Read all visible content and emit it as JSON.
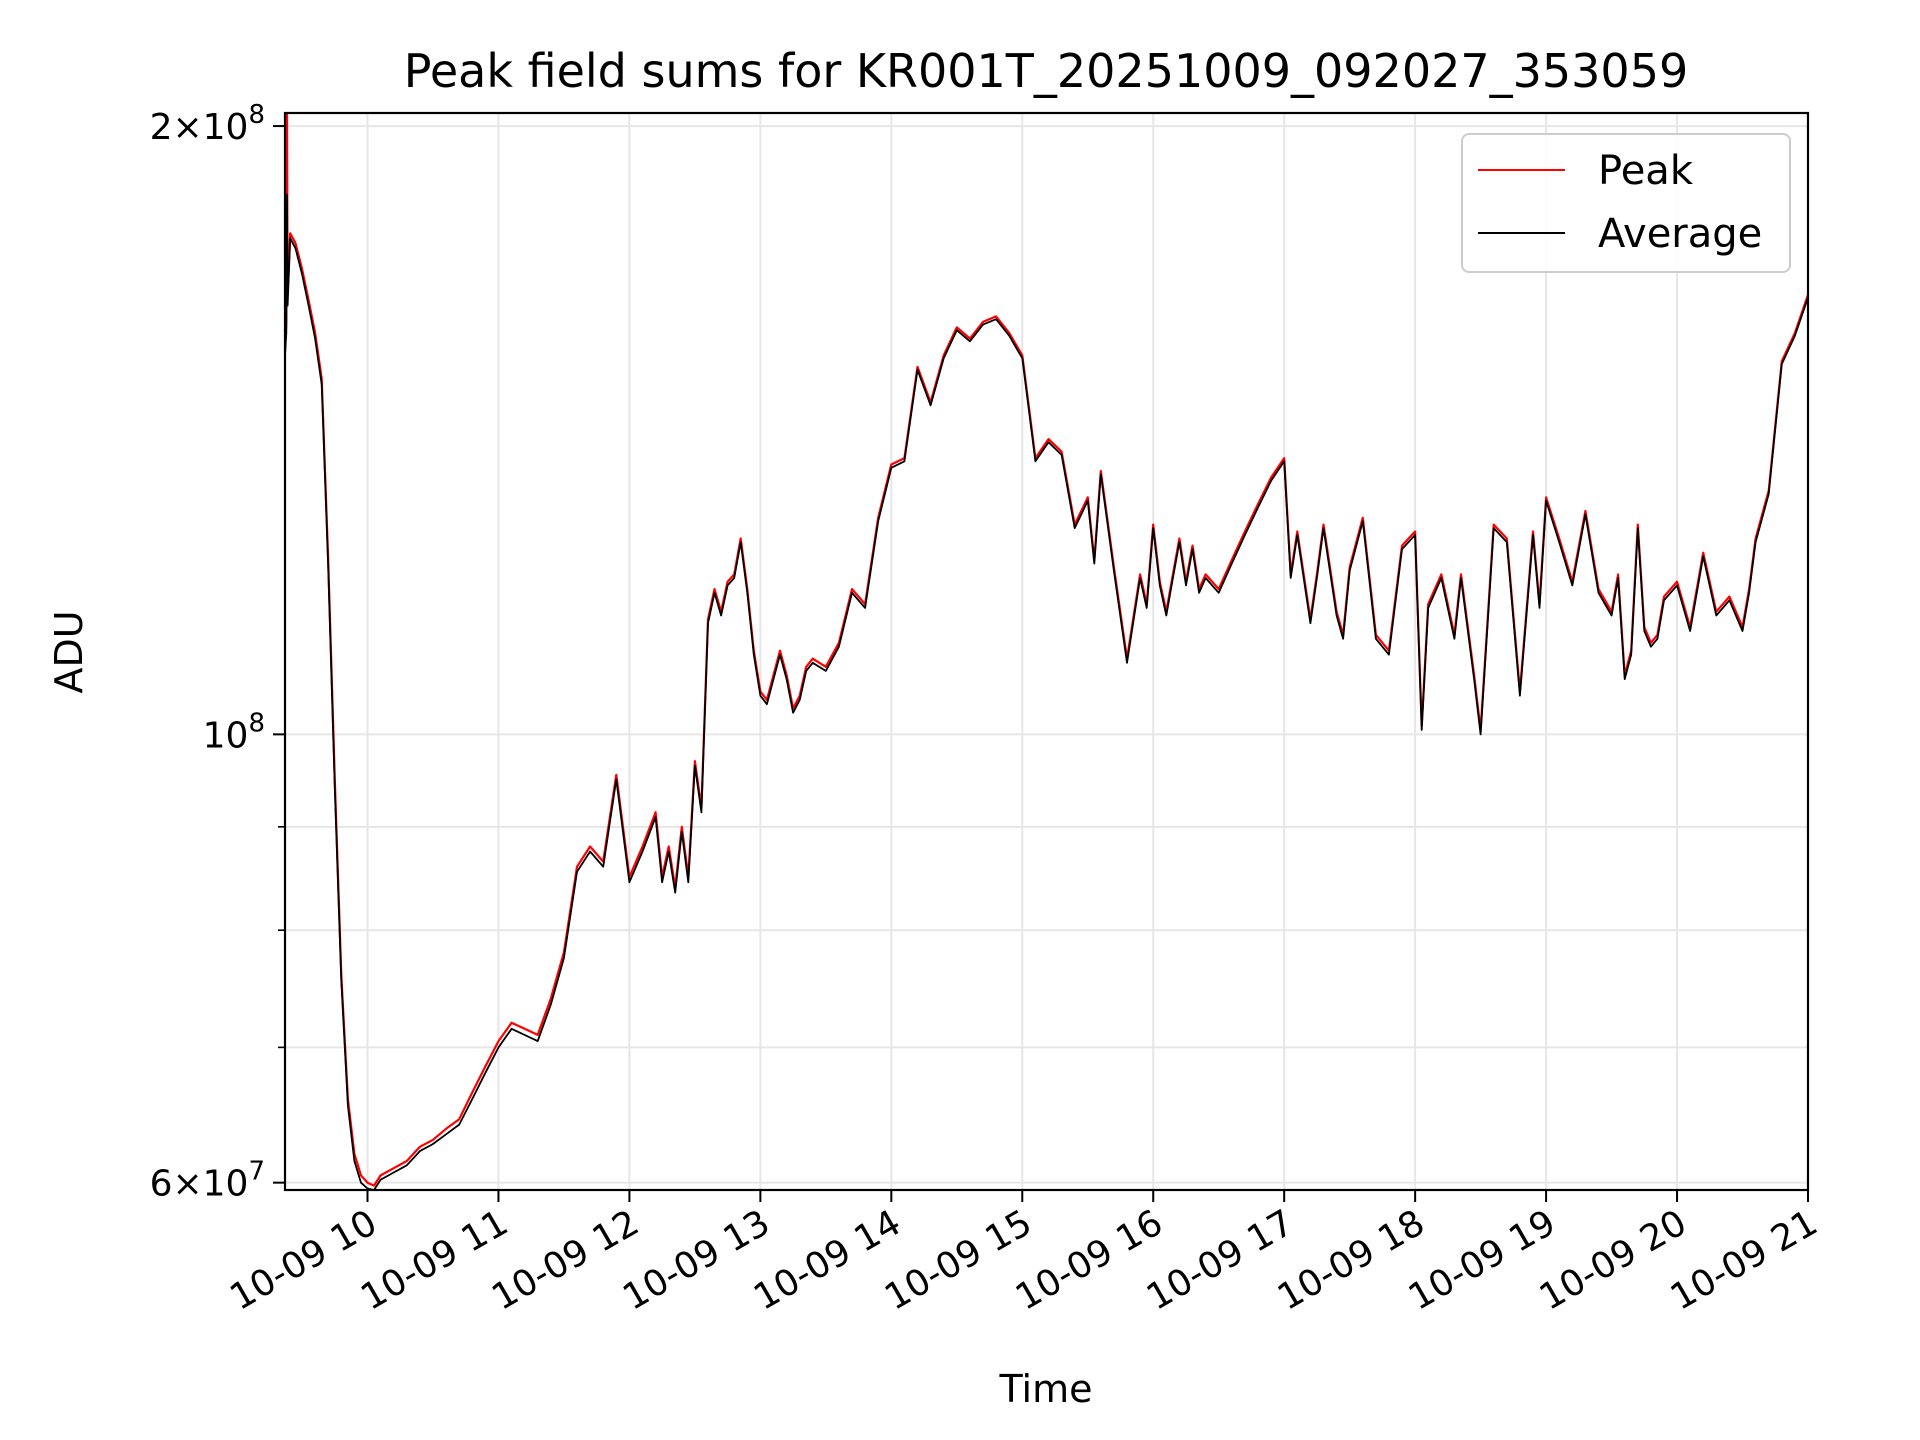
{
  "chart_data": {
    "type": "line",
    "title": "Peak field sums for KR001T_20251009_092027_353059",
    "xlabel": "Time",
    "ylabel": "ADU",
    "yscale": "log",
    "ylim": [
      59500000,
      203000000
    ],
    "xlim": [
      9.37,
      21.0
    ],
    "grid": true,
    "legend_position": "top-right",
    "x_ticks": [
      {
        "value": 10,
        "label": "10-09 10"
      },
      {
        "value": 11,
        "label": "10-09 11"
      },
      {
        "value": 12,
        "label": "10-09 12"
      },
      {
        "value": 13,
        "label": "10-09 13"
      },
      {
        "value": 14,
        "label": "10-09 14"
      },
      {
        "value": 15,
        "label": "10-09 15"
      },
      {
        "value": 16,
        "label": "10-09 16"
      },
      {
        "value": 17,
        "label": "10-09 17"
      },
      {
        "value": 18,
        "label": "10-09 18"
      },
      {
        "value": 19,
        "label": "10-09 19"
      },
      {
        "value": 20,
        "label": "10-09 20"
      },
      {
        "value": 21,
        "label": "10-09 21"
      }
    ],
    "y_major_ticks": [
      {
        "value": 60000000,
        "mantissa": "6",
        "base": "10",
        "exponent": "7"
      },
      {
        "value": 100000000,
        "mantissa": "",
        "base": "10",
        "exponent": "8"
      },
      {
        "value": 200000000,
        "mantissa": "2",
        "base": "10",
        "exponent": "8"
      }
    ],
    "y_minor_ticks": [
      70000000,
      80000000,
      90000000
    ],
    "series": [
      {
        "name": "Peak",
        "color": "#ff0000",
        "x": [
          9.37,
          9.38,
          9.385,
          9.39,
          9.41,
          9.45,
          9.5,
          9.55,
          9.6,
          9.65,
          9.7,
          9.75,
          9.8,
          9.85,
          9.9,
          9.95,
          10.0,
          10.05,
          10.1,
          10.2,
          10.3,
          10.4,
          10.5,
          10.6,
          10.7,
          10.8,
          10.9,
          11.0,
          11.1,
          11.2,
          11.3,
          11.4,
          11.5,
          11.6,
          11.7,
          11.8,
          11.9,
          12.0,
          12.1,
          12.2,
          12.25,
          12.3,
          12.35,
          12.4,
          12.45,
          12.5,
          12.55,
          12.6,
          12.65,
          12.7,
          12.75,
          12.8,
          12.85,
          12.9,
          12.95,
          13.0,
          13.05,
          13.1,
          13.15,
          13.2,
          13.25,
          13.3,
          13.35,
          13.4,
          13.5,
          13.6,
          13.7,
          13.8,
          13.9,
          14.0,
          14.1,
          14.2,
          14.3,
          14.4,
          14.5,
          14.6,
          14.7,
          14.8,
          14.9,
          15.0,
          15.1,
          15.2,
          15.3,
          15.4,
          15.5,
          15.55,
          15.6,
          15.7,
          15.8,
          15.9,
          15.95,
          16.0,
          16.05,
          16.1,
          16.15,
          16.2,
          16.25,
          16.3,
          16.35,
          16.4,
          16.5,
          16.6,
          16.7,
          16.8,
          16.9,
          17.0,
          17.05,
          17.1,
          17.2,
          17.25,
          17.3,
          17.4,
          17.45,
          17.5,
          17.6,
          17.7,
          17.8,
          17.9,
          18.0,
          18.05,
          18.1,
          18.2,
          18.3,
          18.35,
          18.45,
          18.5,
          18.6,
          18.7,
          18.8,
          18.9,
          18.95,
          19.0,
          19.1,
          19.2,
          19.3,
          19.4,
          19.5,
          19.55,
          19.6,
          19.65,
          19.7,
          19.75,
          19.8,
          19.85,
          19.9,
          20.0,
          20.1,
          20.2,
          20.3,
          20.4,
          20.5,
          20.55,
          20.6,
          20.7,
          20.8,
          20.9,
          21.0
        ],
        "values": [
          155000000,
          160000000,
          203000000,
          165000000,
          177000000,
          175000000,
          170000000,
          164000000,
          158000000,
          150000000,
          122000000,
          95000000,
          76000000,
          66000000,
          62000000,
          60500000,
          60000000,
          59800000,
          60500000,
          61000000,
          61500000,
          62500000,
          63000000,
          63800000,
          64500000,
          66500000,
          68500000,
          70500000,
          72000000,
          71500000,
          71000000,
          74000000,
          78000000,
          86000000,
          88000000,
          86500000,
          95500000,
          85000000,
          88000000,
          91500000,
          85000000,
          88000000,
          84000000,
          90000000,
          85000000,
          97000000,
          92000000,
          114000000,
          118000000,
          115000000,
          119000000,
          120000000,
          125000000,
          118000000,
          110000000,
          105000000,
          104000000,
          107000000,
          110000000,
          107000000,
          103000000,
          104500000,
          108000000,
          109000000,
          108000000,
          111000000,
          118000000,
          116000000,
          128000000,
          136000000,
          137000000,
          152000000,
          146000000,
          154000000,
          159000000,
          157000000,
          160000000,
          161000000,
          158000000,
          154000000,
          137000000,
          140000000,
          138000000,
          127000000,
          131000000,
          122000000,
          135000000,
          121000000,
          109000000,
          120000000,
          116000000,
          127000000,
          119000000,
          115000000,
          120000000,
          125000000,
          119000000,
          124000000,
          118000000,
          120000000,
          118000000,
          122000000,
          126000000,
          130000000,
          134000000,
          137000000,
          120000000,
          126000000,
          114000000,
          120000000,
          127000000,
          115000000,
          112000000,
          121000000,
          128000000,
          112000000,
          110000000,
          124000000,
          126000000,
          101000000,
          116000000,
          120000000,
          112000000,
          120000000,
          107000000,
          100500000,
          127000000,
          125000000,
          105000000,
          126000000,
          116000000,
          131000000,
          125000000,
          119000000,
          129000000,
          118000000,
          115000000,
          120000000,
          107000000,
          110000000,
          127000000,
          113000000,
          111000000,
          112000000,
          117000000,
          119000000,
          113000000,
          123000000,
          115000000,
          117000000,
          113000000,
          118000000,
          125000000,
          132000000,
          153000000,
          158000000,
          165000000
        ]
      },
      {
        "name": "Average",
        "color": "#000000",
        "x": [
          9.37,
          9.38,
          9.385,
          9.39,
          9.41,
          9.45,
          9.5,
          9.55,
          9.6,
          9.65,
          9.7,
          9.75,
          9.8,
          9.85,
          9.9,
          9.95,
          10.0,
          10.05,
          10.1,
          10.2,
          10.3,
          10.4,
          10.5,
          10.6,
          10.7,
          10.8,
          10.9,
          11.0,
          11.1,
          11.2,
          11.3,
          11.4,
          11.5,
          11.6,
          11.7,
          11.8,
          11.9,
          12.0,
          12.1,
          12.2,
          12.25,
          12.3,
          12.35,
          12.4,
          12.45,
          12.5,
          12.55,
          12.6,
          12.65,
          12.7,
          12.75,
          12.8,
          12.85,
          12.9,
          12.95,
          13.0,
          13.05,
          13.1,
          13.15,
          13.2,
          13.25,
          13.3,
          13.35,
          13.4,
          13.5,
          13.6,
          13.7,
          13.8,
          13.9,
          14.0,
          14.1,
          14.2,
          14.3,
          14.4,
          14.5,
          14.6,
          14.7,
          14.8,
          14.9,
          15.0,
          15.1,
          15.2,
          15.3,
          15.4,
          15.5,
          15.55,
          15.6,
          15.7,
          15.8,
          15.9,
          15.95,
          16.0,
          16.05,
          16.1,
          16.15,
          16.2,
          16.25,
          16.3,
          16.35,
          16.4,
          16.5,
          16.6,
          16.7,
          16.8,
          16.9,
          17.0,
          17.05,
          17.1,
          17.2,
          17.25,
          17.3,
          17.4,
          17.45,
          17.5,
          17.6,
          17.7,
          17.8,
          17.9,
          18.0,
          18.05,
          18.1,
          18.2,
          18.3,
          18.35,
          18.45,
          18.5,
          18.6,
          18.7,
          18.8,
          18.9,
          18.95,
          19.0,
          19.1,
          19.2,
          19.3,
          19.4,
          19.5,
          19.55,
          19.6,
          19.65,
          19.7,
          19.75,
          19.8,
          19.85,
          19.9,
          20.0,
          20.1,
          20.2,
          20.3,
          20.4,
          20.5,
          20.55,
          20.6,
          20.7,
          20.8,
          20.9,
          21.0
        ],
        "values": [
          154000000,
          158000000,
          185000000,
          163000000,
          176000000,
          174000000,
          169000000,
          163000000,
          157000000,
          149000000,
          121000000,
          94000000,
          75500000,
          65500000,
          61500000,
          60000000,
          59600000,
          59500000,
          60200000,
          60700000,
          61200000,
          62200000,
          62700000,
          63400000,
          64100000,
          66000000,
          68000000,
          70000000,
          71500000,
          71000000,
          70500000,
          73500000,
          77500000,
          85500000,
          87500000,
          86000000,
          95000000,
          84500000,
          87500000,
          91000000,
          84500000,
          87500000,
          83500000,
          89500000,
          84500000,
          96500000,
          91500000,
          113500000,
          117500000,
          114500000,
          118500000,
          119500000,
          124500000,
          117500000,
          109500000,
          104500000,
          103500000,
          106500000,
          109500000,
          106500000,
          102500000,
          104000000,
          107500000,
          108500000,
          107500000,
          110500000,
          117500000,
          115500000,
          127500000,
          135500000,
          136500000,
          151500000,
          145500000,
          153500000,
          158500000,
          156500000,
          159500000,
          160500000,
          157500000,
          153500000,
          136500000,
          139500000,
          137500000,
          126500000,
          130500000,
          121500000,
          134500000,
          120500000,
          108500000,
          119500000,
          115500000,
          126500000,
          118500000,
          114500000,
          119500000,
          124500000,
          118500000,
          123500000,
          117500000,
          119500000,
          117500000,
          121500000,
          125500000,
          129500000,
          133500000,
          136500000,
          119500000,
          125500000,
          113500000,
          119500000,
          126500000,
          114500000,
          111500000,
          120500000,
          127500000,
          111500000,
          109500000,
          123500000,
          125500000,
          100500000,
          115500000,
          119500000,
          111500000,
          119500000,
          106500000,
          100000000,
          126500000,
          124500000,
          104500000,
          125500000,
          115500000,
          130500000,
          124500000,
          118500000,
          128500000,
          117500000,
          114500000,
          119500000,
          106500000,
          109500000,
          126500000,
          112500000,
          110500000,
          111500000,
          116500000,
          118500000,
          112500000,
          122500000,
          114500000,
          116500000,
          112500000,
          117500000,
          124500000,
          131500000,
          152500000,
          157500000,
          164500000
        ]
      }
    ]
  }
}
